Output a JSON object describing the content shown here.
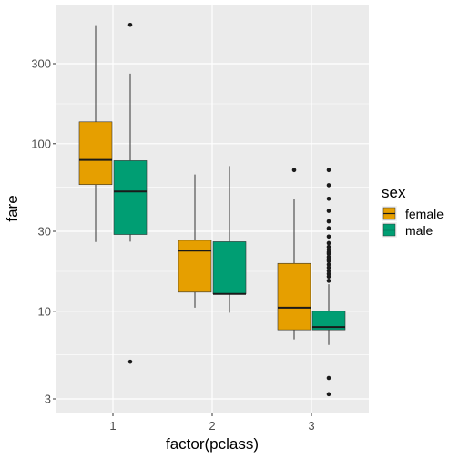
{
  "chart_data": {
    "type": "boxplot",
    "xlabel": "factor(pclass)",
    "ylabel": "fare",
    "y_scale": "log10",
    "ylim": [
      2.6,
      620
    ],
    "categories": [
      "1",
      "2",
      "3"
    ],
    "y_ticks": [
      3,
      10,
      30,
      100,
      300
    ],
    "y_minor_ticks": [
      5.5,
      17.3,
      55,
      173
    ],
    "grid": true,
    "legend": {
      "title": "sex",
      "position": "right",
      "entries": [
        {
          "name": "female",
          "color": "#E69F00"
        },
        {
          "name": "male",
          "color": "#009E73"
        }
      ]
    },
    "series": [
      {
        "name": "female",
        "color": "#E69F00",
        "boxes": [
          {
            "category": "1",
            "whisker_low": 25.9,
            "q1": 57,
            "median": 80,
            "q3": 135,
            "whisker_high": 510,
            "outliers": []
          },
          {
            "category": "2",
            "whisker_low": 10.5,
            "q1": 13,
            "median": 23,
            "q3": 26.5,
            "whisker_high": 65.5,
            "outliers": []
          },
          {
            "category": "3",
            "whisker_low": 6.8,
            "q1": 7.75,
            "median": 10.5,
            "q3": 19.3,
            "whisker_high": 46.9,
            "outliers": [
              69.55
            ]
          }
        ]
      },
      {
        "name": "male",
        "color": "#009E73",
        "boxes": [
          {
            "category": "1",
            "whisker_low": 26,
            "q1": 28.7,
            "median": 51.9,
            "q3": 79.2,
            "whisker_high": 262,
            "outliers": [
              512.3,
              5
            ]
          },
          {
            "category": "2",
            "whisker_low": 9.8,
            "q1": 12.7,
            "median": 12.7,
            "q3": 26,
            "whisker_high": 73.5,
            "outliers": []
          },
          {
            "category": "3",
            "whisker_low": 6.3,
            "q1": 7.75,
            "median": 8.05,
            "q3": 10,
            "whisker_high": 14.5,
            "outliers": [
              3.2,
              4,
              15.2,
              16.1,
              16.7,
              17.4,
              18.2,
              19,
              19.9,
              20.5,
              21.1,
              22,
              22.5,
              23.3,
              24.2,
              25.5,
              27.9,
              31.3,
              34.4,
              39.7,
              46.9,
              56.5,
              69.55
            ]
          }
        ]
      }
    ]
  }
}
